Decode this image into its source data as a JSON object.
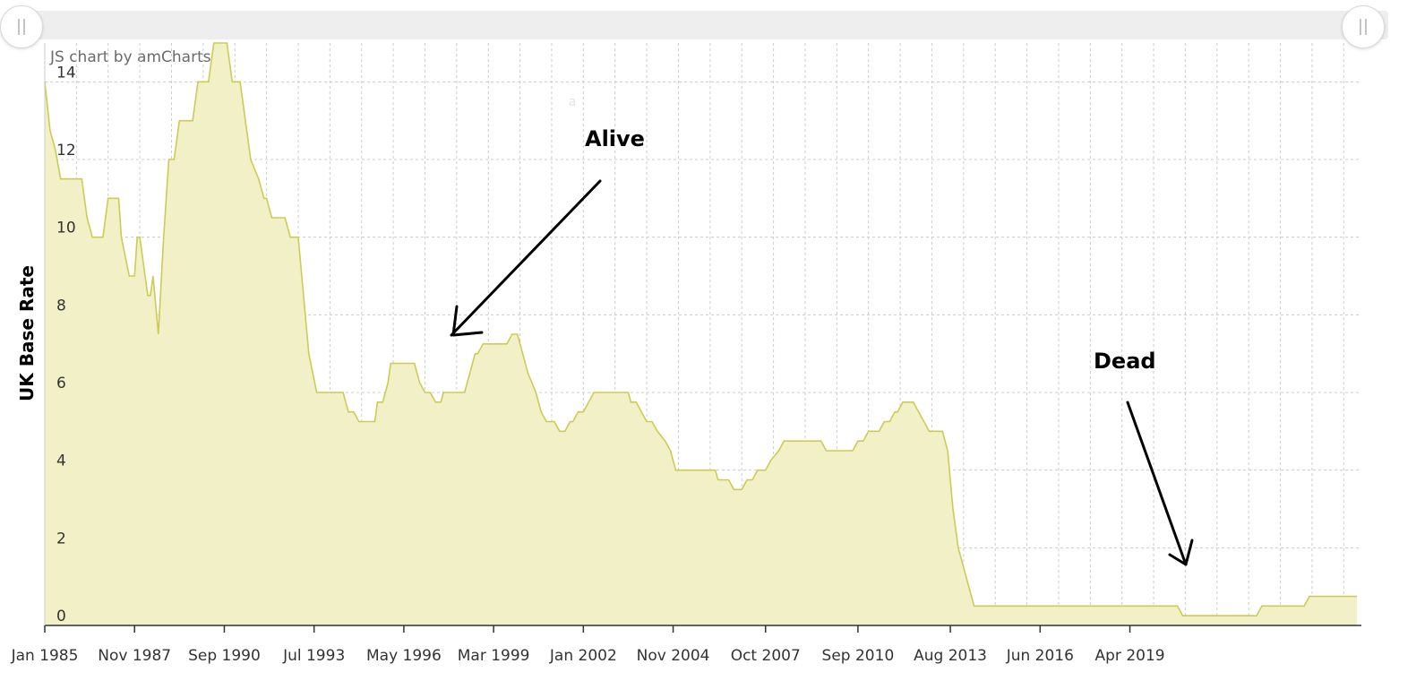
{
  "credit": "JS chart by amCharts",
  "chart_data": {
    "type": "area",
    "ylabel": "UK Base Rate",
    "xlabel": "",
    "ylim": [
      0,
      15
    ],
    "yticks": [
      0,
      2,
      4,
      6,
      8,
      10,
      12,
      14
    ],
    "xticks": [
      "Jan 1985",
      "Nov 1987",
      "Sep 1990",
      "Jul 1993",
      "May 1996",
      "Mar 1999",
      "Jan 2002",
      "Nov 2004",
      "Oct 2007",
      "Sep 2010",
      "Aug 2013",
      "Jun 2016",
      "Apr 2019"
    ],
    "grid": true,
    "colors": {
      "fill": "#f1f0c6",
      "line": "#cccc55",
      "grid": "#cccccc",
      "annotation": "#000000"
    },
    "series": [
      {
        "points": [
          [
            "1985-01",
            14
          ],
          [
            "1985-03",
            12.75
          ],
          [
            "1985-05",
            12.25
          ],
          [
            "1985-07",
            11.5
          ],
          [
            "1986-03",
            11.5
          ],
          [
            "1986-05",
            10.5
          ],
          [
            "1986-07",
            10
          ],
          [
            "1986-11",
            10
          ],
          [
            "1987-01",
            11
          ],
          [
            "1987-05",
            11
          ],
          [
            "1987-06",
            10
          ],
          [
            "1987-09",
            9
          ],
          [
            "1987-11",
            9
          ],
          [
            "1987-12",
            10
          ],
          [
            "1988-01",
            10
          ],
          [
            "1988-04",
            8.5
          ],
          [
            "1988-05",
            8.5
          ],
          [
            "1988-06",
            9
          ],
          [
            "1988-08",
            7.5
          ],
          [
            "1988-10",
            10
          ],
          [
            "1988-12",
            12
          ],
          [
            "1989-02",
            12
          ],
          [
            "1989-04",
            13
          ],
          [
            "1989-09",
            13
          ],
          [
            "1989-11",
            14
          ],
          [
            "1990-03",
            14
          ],
          [
            "1990-05",
            15
          ],
          [
            "1990-10",
            15
          ],
          [
            "1990-12",
            14
          ],
          [
            "1991-03",
            14
          ],
          [
            "1991-05",
            13
          ],
          [
            "1991-07",
            12
          ],
          [
            "1991-10",
            11.5
          ],
          [
            "1991-12",
            11
          ],
          [
            "1992-01",
            11
          ],
          [
            "1992-03",
            10.5
          ],
          [
            "1992-08",
            10.5
          ],
          [
            "1992-10",
            10
          ],
          [
            "1993-01",
            10
          ],
          [
            "1993-05",
            7
          ],
          [
            "1993-08",
            6
          ],
          [
            "1994-06",
            6
          ],
          [
            "1994-08",
            5.5
          ],
          [
            "1994-10",
            5.5
          ],
          [
            "1994-12",
            5.25
          ],
          [
            "1995-06",
            5.25
          ],
          [
            "1995-07",
            5.75
          ],
          [
            "1995-09",
            5.75
          ],
          [
            "1995-11",
            6.25
          ],
          [
            "1995-12",
            6.75
          ],
          [
            "1996-09",
            6.75
          ],
          [
            "1996-11",
            6.25
          ],
          [
            "1997-01",
            6
          ],
          [
            "1997-03",
            6
          ],
          [
            "1997-05",
            5.75
          ],
          [
            "1997-07",
            5.75
          ],
          [
            "1997-08",
            6
          ],
          [
            "1998-04",
            6
          ],
          [
            "1998-06",
            6.5
          ],
          [
            "1998-08",
            7
          ],
          [
            "1998-09",
            7
          ],
          [
            "1998-11",
            7.25
          ],
          [
            "1999-08",
            7.25
          ],
          [
            "1999-10",
            7.5
          ],
          [
            "1999-12",
            7.5
          ],
          [
            "2000-02",
            7
          ],
          [
            "2000-04",
            6.5
          ],
          [
            "2000-07",
            6
          ],
          [
            "2000-09",
            5.5
          ],
          [
            "2000-11",
            5.25
          ],
          [
            "2001-02",
            5.25
          ],
          [
            "2001-04",
            5
          ],
          [
            "2001-06",
            5
          ],
          [
            "2001-08",
            5.25
          ],
          [
            "2001-09",
            5.25
          ],
          [
            "2001-11",
            5.5
          ],
          [
            "2002-01",
            5.5
          ],
          [
            "2002-05",
            6
          ],
          [
            "2003-06",
            6
          ],
          [
            "2003-07",
            5.75
          ],
          [
            "2003-09",
            5.75
          ],
          [
            "2003-11",
            5.5
          ],
          [
            "2004-01",
            5.25
          ],
          [
            "2004-03",
            5.25
          ],
          [
            "2004-05",
            5
          ],
          [
            "2004-08",
            4.75
          ],
          [
            "2004-10",
            4.5
          ],
          [
            "2004-12",
            4
          ],
          [
            "2006-03",
            4
          ],
          [
            "2006-04",
            3.75
          ],
          [
            "2006-08",
            3.75
          ],
          [
            "2006-10",
            3.5
          ],
          [
            "2007-01",
            3.5
          ],
          [
            "2007-03",
            3.75
          ],
          [
            "2007-05",
            3.75
          ],
          [
            "2007-07",
            4
          ],
          [
            "2007-10",
            4
          ],
          [
            "2007-12",
            4.25
          ],
          [
            "2008-03",
            4.5
          ],
          [
            "2008-05",
            4.75
          ],
          [
            "2009-07",
            4.75
          ],
          [
            "2009-09",
            4.5
          ],
          [
            "2010-07",
            4.5
          ],
          [
            "2010-09",
            4.75
          ],
          [
            "2010-11",
            4.75
          ],
          [
            "2011-01",
            5
          ],
          [
            "2011-05",
            5
          ],
          [
            "2011-07",
            5.25
          ],
          [
            "2011-09",
            5.25
          ],
          [
            "2011-11",
            5.5
          ],
          [
            "2011-12",
            5.5
          ],
          [
            "2012-02",
            5.75
          ],
          [
            "2012-06",
            5.75
          ],
          [
            "2012-08",
            5.5
          ],
          [
            "2012-10",
            5.25
          ],
          [
            "2012-12",
            5
          ],
          [
            "2013-05",
            5
          ],
          [
            "2013-07",
            4.5
          ],
          [
            "2013-09",
            3
          ],
          [
            "2013-11",
            2
          ],
          [
            "2014-01",
            1.5
          ],
          [
            "2014-03",
            1
          ],
          [
            "2014-05",
            0.5
          ],
          [
            "2020-10",
            0.5
          ],
          [
            "2020-12",
            0.25
          ],
          [
            "2023-04",
            0.25
          ],
          [
            "2023-06",
            0.5
          ],
          [
            "2024-10",
            0.5
          ],
          [
            "2024-12",
            0.75
          ],
          [
            "2026-06",
            0.75
          ]
        ]
      }
    ],
    "annotations": [
      {
        "text": "Alive"
      },
      {
        "text": "Dead"
      }
    ],
    "faint_text": "a"
  }
}
